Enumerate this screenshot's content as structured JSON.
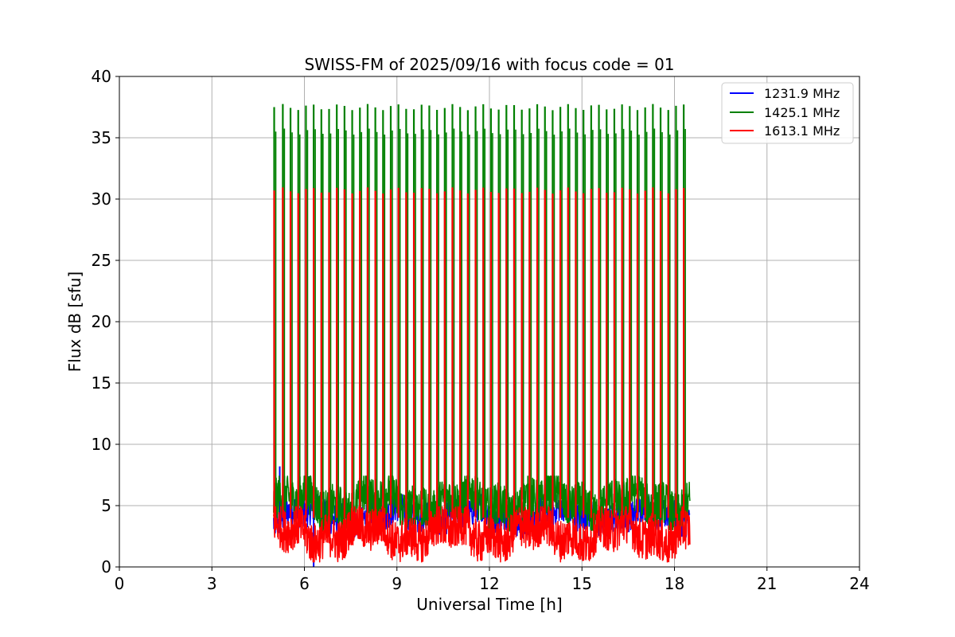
{
  "chart_data": {
    "type": "line",
    "title": "SWISS-FM of 2025/09/16 with focus code = 01",
    "xlabel": "Universal Time [h]",
    "ylabel": "Flux dB [sfu]",
    "xlim": [
      0,
      24
    ],
    "ylim": [
      0,
      40
    ],
    "xticks": [
      0,
      3,
      6,
      9,
      12,
      15,
      18,
      21,
      24
    ],
    "yticks": [
      0,
      5,
      10,
      15,
      20,
      25,
      30,
      35,
      40
    ],
    "grid": true,
    "legend_position": "top-right",
    "time_range_h": [
      5.0,
      18.5
    ],
    "spike_times_h": [
      5.02,
      5.3,
      5.55,
      5.8,
      6.05,
      6.3,
      6.55,
      6.8,
      7.05,
      7.3,
      7.55,
      7.8,
      8.05,
      8.3,
      8.55,
      8.8,
      9.05,
      9.3,
      9.55,
      9.8,
      10.05,
      10.3,
      10.55,
      10.8,
      11.05,
      11.3,
      11.55,
      11.8,
      12.05,
      12.3,
      12.55,
      12.8,
      13.05,
      13.3,
      13.55,
      13.8,
      14.05,
      14.3,
      14.55,
      14.8,
      15.05,
      15.3,
      15.55,
      15.8,
      16.05,
      16.3,
      16.55,
      16.8,
      17.05,
      17.3,
      17.55,
      17.8,
      18.05,
      18.3
    ],
    "series": [
      {
        "name": "1231.9 MHz",
        "color": "#0000ff",
        "baseline_range_db": [
          3.0,
          5.5
        ],
        "spike_peak_db": 30.7,
        "outliers": [
          {
            "x_h": 5.2,
            "y_db": 8.2
          },
          {
            "x_h": 6.15,
            "y_db": 7.4
          },
          {
            "x_h": 6.3,
            "y_db": 0.0
          },
          {
            "x_h": 17.05,
            "y_db": 8.9
          }
        ]
      },
      {
        "name": "1425.1 MHz",
        "color": "#008000",
        "baseline_range_db": [
          3.5,
          7.0
        ],
        "spike_peak_db": 37.5
      },
      {
        "name": "1613.1 MHz",
        "color": "#ff0000",
        "baseline_range_db": [
          1.0,
          4.5
        ],
        "spike_peak_db": 30.7
      }
    ]
  }
}
